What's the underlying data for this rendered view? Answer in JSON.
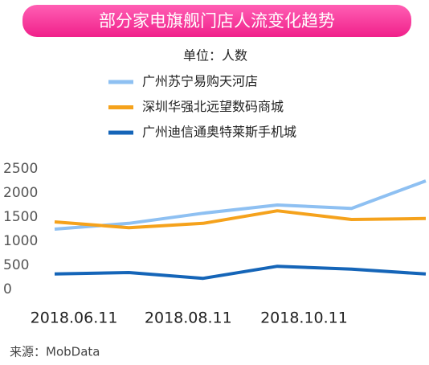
{
  "chart_data": {
    "type": "line",
    "title": "部分家电旗舰门店人流变化趋势",
    "subtitle": "单位：人数",
    "source": "来源：MobData",
    "categories": [
      null,
      null,
      null,
      null,
      null,
      null
    ],
    "xticks": [
      {
        "value": 0.26,
        "label": "2018.06.11"
      },
      {
        "value": 1.8,
        "label": "2018.08.11"
      },
      {
        "value": 3.36,
        "label": "2018.10.11"
      }
    ],
    "series": [
      {
        "name": "广州苏宁易购天河店",
        "color": "#8ec0f2",
        "values": [
          1250,
          1370,
          1580,
          1750,
          1680,
          2250
        ]
      },
      {
        "name": "深圳华强北远望数码商城",
        "color": "#f5a21c",
        "values": [
          1400,
          1280,
          1370,
          1630,
          1450,
          1470
        ]
      },
      {
        "name": "广州迪信通奥特莱斯手机城",
        "color": "#1565b8",
        "values": [
          320,
          350,
          230,
          480,
          420,
          320
        ]
      }
    ],
    "ylim": [
      0,
      2500
    ],
    "yticks": [
      0,
      500,
      1000,
      1500,
      2000,
      2500
    ],
    "grid": false
  }
}
